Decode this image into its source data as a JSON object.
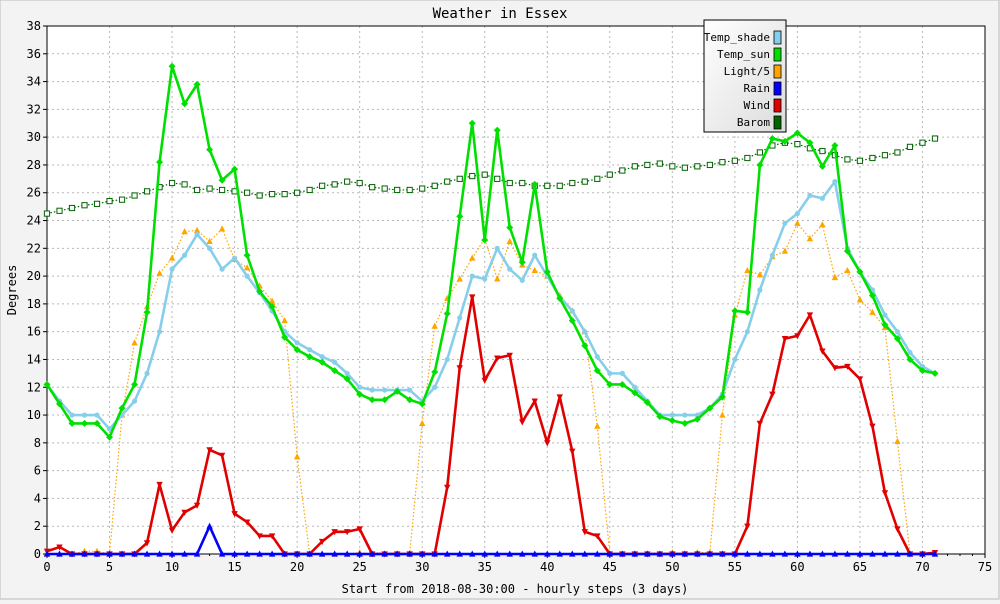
{
  "chart_data": {
    "type": "line",
    "title": "Weather in Essex",
    "xlabel": "Start from 2018-08-30:00 - hourly steps (3 days)",
    "ylabel": "Degrees",
    "xlim": [
      0,
      75
    ],
    "ylim": [
      0,
      38
    ],
    "x_ticks": [
      0,
      5,
      10,
      15,
      20,
      25,
      30,
      35,
      40,
      45,
      50,
      55,
      60,
      65,
      70,
      75
    ],
    "y_ticks": [
      0,
      2,
      4,
      6,
      8,
      10,
      12,
      14,
      16,
      18,
      20,
      22,
      24,
      26,
      28,
      30,
      32,
      34,
      36,
      38
    ],
    "grid": true,
    "legend_position": "top-right",
    "series": [
      {
        "name": "Temp_shade",
        "color": "#87ceeb",
        "marker": "circle",
        "line": "solid",
        "values": [
          12.2,
          11,
          10,
          10,
          10,
          9,
          10,
          11,
          13,
          16,
          20.5,
          21.5,
          23,
          22,
          20.5,
          21.3,
          20,
          18.8,
          17.5,
          16,
          15.2,
          14.7,
          14.2,
          13.8,
          13,
          12,
          11.8,
          11.8,
          11.8,
          11.8,
          11,
          12,
          14,
          17,
          20,
          19.8,
          22,
          20.5,
          19.7,
          21.5,
          20,
          18.5,
          17.5,
          16,
          14.2,
          13,
          13,
          12,
          11,
          10,
          10,
          10,
          10,
          10.5,
          11.5,
          14,
          16,
          19,
          21.5,
          23.8,
          24.5,
          25.8,
          25.6,
          26.8,
          22,
          20.3,
          19,
          17.2,
          16,
          14.5,
          13.5,
          13
        ]
      },
      {
        "name": "Temp_sun",
        "color": "#00e000",
        "marker": "diamond",
        "line": "solid",
        "values": [
          12.2,
          10.8,
          9.4,
          9.4,
          9.4,
          8.4,
          10.5,
          12.2,
          17.4,
          28.2,
          35.1,
          32.4,
          33.8,
          29.1,
          26.9,
          27.7,
          21.5,
          18.9,
          17.8,
          15.6,
          14.7,
          14.2,
          13.8,
          13.2,
          12.6,
          11.5,
          11.1,
          11.1,
          11.7,
          11.1,
          10.8,
          13.1,
          17.3,
          24.3,
          31,
          22.6,
          30.5,
          23.5,
          21,
          26.6,
          20.3,
          18.4,
          16.8,
          15,
          13.2,
          12.2,
          12.2,
          11.6,
          10.9,
          9.9,
          9.6,
          9.4,
          9.7,
          10.5,
          11.3,
          17.5,
          17.4,
          28,
          29.9,
          29.7,
          30.3,
          29.6,
          27.9,
          29.4,
          21.8,
          20.3,
          18.6,
          16.5,
          15.5,
          14,
          13.2,
          13
        ]
      },
      {
        "name": "Light/5",
        "color": "#ffa500",
        "marker": "triangle",
        "line": "dotted",
        "values": [
          0,
          0,
          0,
          0.2,
          0.2,
          0,
          10,
          15.2,
          17.8,
          20.2,
          21.3,
          23.2,
          23.3,
          22.5,
          23.4,
          21.2,
          20.6,
          19.3,
          18.2,
          16.8,
          7,
          0,
          0,
          0,
          0,
          0.1,
          0,
          0,
          0,
          0,
          9.4,
          16.4,
          18.4,
          19.8,
          21.3,
          22.7,
          19.8,
          22.5,
          20.8,
          20.4,
          20,
          18.6,
          17.5,
          16,
          9.2,
          0,
          0,
          0,
          0,
          0,
          0.1,
          0,
          0.1,
          0.1,
          10,
          17.2,
          20.4,
          20.1,
          21.4,
          21.8,
          23.8,
          22.7,
          23.7,
          19.9,
          20.4,
          18.3,
          17.4,
          16.3,
          8.1,
          0,
          0,
          0
        ]
      },
      {
        "name": "Rain",
        "color": "#0000ff",
        "marker": "triangle",
        "line": "solid",
        "values": [
          0,
          0,
          0,
          0,
          0,
          0,
          0,
          0,
          0,
          0,
          0,
          0,
          0,
          2,
          0,
          0,
          0,
          0,
          0,
          0,
          0,
          0,
          0,
          0,
          0,
          0,
          0,
          0,
          0,
          0,
          0,
          0,
          0,
          0,
          0,
          0,
          0,
          0,
          0,
          0,
          0,
          0,
          0,
          0,
          0,
          0,
          0,
          0,
          0,
          0,
          0,
          0,
          0,
          0,
          0,
          0,
          0,
          0,
          0,
          0,
          0,
          0,
          0,
          0,
          0,
          0,
          0,
          0,
          0,
          0,
          0,
          0
        ]
      },
      {
        "name": "Wind",
        "color": "#e00000",
        "marker": "invtriangle",
        "line": "solid",
        "values": [
          0.2,
          0.5,
          0,
          0,
          0,
          0,
          0,
          0,
          0.8,
          5,
          1.7,
          3,
          3.5,
          7.5,
          7.1,
          2.9,
          2.3,
          1.3,
          1.3,
          0,
          0,
          0,
          0.9,
          1.6,
          1.6,
          1.8,
          0,
          0,
          0,
          0,
          0,
          0,
          4.8,
          13.4,
          18.5,
          12.5,
          14.1,
          14.3,
          9.5,
          11,
          8,
          11.3,
          7.4,
          1.6,
          1.3,
          0,
          0,
          0,
          0,
          0,
          0,
          0,
          0,
          0,
          0,
          0,
          2,
          9.4,
          11.5,
          15.5,
          15.7,
          17.2,
          14.6,
          13.4,
          13.5,
          12.6,
          9.2,
          4.4,
          1.8,
          0,
          0,
          0.1
        ]
      },
      {
        "name": "Barom",
        "color": "#006400",
        "marker": "square",
        "line": "dotted",
        "values": [
          24.5,
          24.7,
          24.9,
          25.1,
          25.2,
          25.4,
          25.5,
          25.8,
          26.1,
          26.4,
          26.7,
          26.6,
          26.2,
          26.3,
          26.2,
          26.1,
          26,
          25.8,
          25.9,
          25.9,
          26,
          26.2,
          26.5,
          26.6,
          26.8,
          26.7,
          26.4,
          26.3,
          26.2,
          26.2,
          26.3,
          26.5,
          26.8,
          27,
          27.2,
          27.3,
          27,
          26.7,
          26.7,
          26.5,
          26.5,
          26.5,
          26.7,
          26.8,
          27,
          27.3,
          27.6,
          27.9,
          28,
          28.1,
          27.9,
          27.8,
          27.9,
          28,
          28.2,
          28.3,
          28.5,
          28.9,
          29.4,
          29.6,
          29.5,
          29.2,
          29,
          28.7,
          28.4,
          28.3,
          28.5,
          28.7,
          28.9,
          29.3,
          29.6,
          29.9
        ]
      }
    ]
  }
}
